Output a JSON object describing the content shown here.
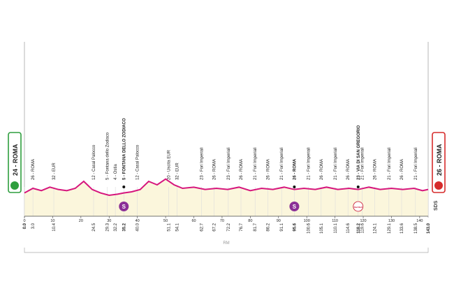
{
  "chart_data": {
    "type": "profile",
    "start": "24 - ROMA",
    "finish": "26 - ROMA",
    "line_color": "#d6167d",
    "area_color": "#fbf6dc",
    "xlim": [
      0,
      143
    ],
    "xticks": [
      0,
      10,
      20,
      30,
      40,
      50,
      60,
      70,
      80,
      90,
      100,
      110,
      120,
      130,
      140
    ],
    "ylim": [
      0,
      150
    ],
    "x": [
      0,
      3,
      6,
      9,
      12,
      15,
      18,
      21,
      24,
      27,
      30,
      33,
      35.2,
      38,
      41,
      44,
      47,
      50,
      53,
      56,
      60,
      64,
      68,
      72,
      76,
      80,
      84,
      88,
      92,
      95.6,
      99,
      103,
      107,
      111,
      115,
      118.2,
      122,
      126,
      130,
      134,
      138,
      141,
      143
    ],
    "y": [
      20,
      24,
      22,
      25,
      23,
      22,
      24,
      30,
      23,
      20,
      18,
      19,
      20,
      21,
      23,
      30,
      27,
      32,
      27,
      24,
      25,
      23,
      24,
      23,
      25,
      22,
      24,
      23,
      25,
      23,
      24,
      23,
      25,
      23,
      24,
      23,
      25,
      23,
      24,
      23,
      24,
      22,
      23
    ],
    "sprints": [
      {
        "km": 35.2,
        "label": "S"
      },
      {
        "km": 95.6,
        "label": "S"
      }
    ],
    "bonus": {
      "km": 118.2,
      "label": "Red Bull"
    },
    "region": "RM",
    "credit": "SDS",
    "waypoints": [
      {
        "km": 0,
        "km_label": "0.0",
        "bold": true
      },
      {
        "km": 3,
        "km_label": "3.0",
        "name": "26 - ROMA",
        "bold": false
      },
      {
        "km": 10.4,
        "km_label": "10.4",
        "name": "32 - EUR",
        "bold": false
      },
      {
        "km": 24.5,
        "km_label": "24.5",
        "name": "12 - Casal Palocco",
        "bold": false
      },
      {
        "km": 29.3,
        "km_label": "29.3",
        "name": "5 - Fontana dello Zodiaco",
        "bold": false
      },
      {
        "km": 32.2,
        "km_label": "32.2",
        "name": "4 - Ostia",
        "bold": false
      },
      {
        "km": 35.2,
        "km_label": "35.2",
        "name": "5 - FONTANA DELLO ZODIACO",
        "bold": true
      },
      {
        "km": 40,
        "km_label": "40.0",
        "name": "12 - Casal Palocco",
        "bold": false
      },
      {
        "km": 51.1,
        "km_label": "51.1",
        "name": "20 - Uscita EUR",
        "bold": false
      },
      {
        "km": 54.1,
        "km_label": "54.1",
        "name": "32 - EUR",
        "bold": false
      },
      {
        "km": 62.7,
        "km_label": "62.7",
        "name": "23 - Fori Imperiali",
        "bold": false
      },
      {
        "km": 67.2,
        "km_label": "67.2",
        "name": "26 - ROMA",
        "bold": false
      },
      {
        "km": 72.2,
        "km_label": "72.2",
        "name": "23 - Fori Imperiali",
        "bold": false
      },
      {
        "km": 76.7,
        "km_label": "76.7",
        "name": "26 - ROMA",
        "bold": false
      },
      {
        "km": 81.7,
        "km_label": "81.7",
        "name": "21 - Fori Imperiali",
        "bold": false
      },
      {
        "km": 86.2,
        "km_label": "86.2",
        "name": "26 - ROMA",
        "bold": false
      },
      {
        "km": 91.1,
        "km_label": "91.1",
        "name": "21 - Fori Imperiali",
        "bold": false
      },
      {
        "km": 95.6,
        "km_label": "95.6",
        "name": "26 - ROMA",
        "bold": true
      },
      {
        "km": 100.6,
        "km_label": "100.6",
        "name": "21 - Fori Imperiali",
        "bold": false
      },
      {
        "km": 105.1,
        "km_label": "105.1",
        "name": "26 - ROMA",
        "bold": false
      },
      {
        "km": 110.1,
        "km_label": "110.1",
        "name": "21 - Fori Imperiali",
        "bold": false
      },
      {
        "km": 114.6,
        "km_label": "114.6",
        "name": "26 - ROMA",
        "bold": false
      },
      {
        "km": 118.2,
        "km_label": "118.2",
        "name": "23 - VIA DI SAN GREGORIO",
        "bold": true
      },
      {
        "km": 119.6,
        "km_label": "119.6",
        "name": "21 - Fori Imperiali",
        "bold": false
      },
      {
        "km": 124.1,
        "km_label": "124.1",
        "name": "26 - ROMA",
        "bold": false
      },
      {
        "km": 129.1,
        "km_label": "129.1",
        "name": "21 - Fori Imperiali",
        "bold": false
      },
      {
        "km": 133.6,
        "km_label": "133.6",
        "name": "26 - ROMA",
        "bold": false
      },
      {
        "km": 138.5,
        "km_label": "138.5",
        "name": "21 - Fori Imperiali",
        "bold": false
      },
      {
        "km": 143,
        "km_label": "143.0",
        "bold": true
      }
    ]
  }
}
